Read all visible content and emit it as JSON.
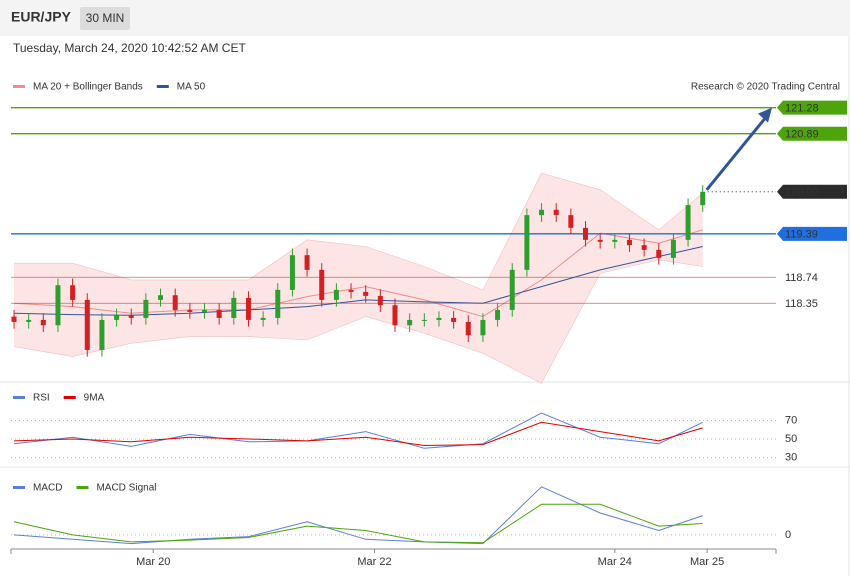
{
  "header": {
    "symbol": "EUR/JPY",
    "interval": "30 MIN",
    "timestamp": "Tuesday, March 24, 2020 10:42:52 AM CET"
  },
  "chart_data": [
    {
      "type": "candlestick",
      "legend": [
        {
          "name": "MA 20 + Bollinger Bands",
          "color": "#f08c8c"
        },
        {
          "name": "MA 50",
          "color": "#2f5597"
        }
      ],
      "credit": "Research © 2020 Trading Central",
      "open": [
        118.15,
        118.07,
        118.1,
        118.02,
        118.62,
        118.4,
        117.65,
        118.1,
        118.17,
        118.13,
        118.4,
        118.47,
        118.25,
        118.22,
        118.25,
        118.13,
        118.43,
        118.1,
        118.13,
        118.55,
        119.07,
        118.85,
        118.4,
        118.55,
        118.52,
        118.46,
        118.32,
        118.02,
        118.1,
        118.1,
        118.13,
        118.07,
        117.87,
        118.1,
        118.25,
        118.85,
        119.67,
        119.75,
        119.67,
        119.48,
        119.3,
        119.27,
        119.3,
        119.22,
        119.15,
        119.03,
        119.3,
        119.82
      ],
      "high": [
        118.25,
        118.2,
        118.2,
        118.72,
        118.72,
        118.5,
        118.2,
        118.27,
        118.27,
        118.5,
        118.57,
        118.57,
        118.35,
        118.35,
        118.35,
        118.53,
        118.53,
        118.23,
        118.65,
        119.17,
        119.17,
        118.95,
        118.65,
        118.65,
        118.62,
        118.56,
        118.42,
        118.2,
        118.2,
        118.23,
        118.23,
        118.17,
        118.2,
        118.35,
        118.95,
        119.77,
        119.85,
        119.85,
        119.77,
        119.58,
        119.4,
        119.4,
        119.4,
        119.32,
        119.25,
        119.4,
        119.92,
        120.12
      ],
      "low": [
        117.97,
        117.97,
        117.92,
        117.92,
        118.3,
        117.55,
        117.55,
        118.0,
        118.03,
        118.03,
        118.3,
        118.15,
        118.12,
        118.12,
        118.03,
        118.03,
        118.0,
        118.0,
        118.03,
        118.45,
        118.75,
        118.3,
        118.3,
        118.42,
        118.36,
        118.22,
        117.92,
        117.92,
        118.0,
        118.0,
        117.97,
        117.77,
        117.77,
        118.0,
        118.15,
        118.75,
        119.57,
        119.57,
        119.38,
        119.2,
        119.17,
        119.17,
        119.12,
        119.05,
        118.93,
        118.93,
        119.2,
        119.72
      ],
      "close": [
        118.07,
        118.1,
        118.02,
        118.62,
        118.4,
        117.65,
        118.1,
        118.17,
        118.13,
        118.4,
        118.47,
        118.25,
        118.22,
        118.25,
        118.13,
        118.43,
        118.1,
        118.13,
        118.55,
        119.07,
        118.85,
        118.4,
        118.55,
        118.52,
        118.46,
        118.32,
        118.02,
        118.1,
        118.1,
        118.13,
        118.07,
        117.87,
        118.1,
        118.25,
        118.85,
        119.67,
        119.75,
        119.67,
        119.48,
        119.3,
        119.27,
        119.3,
        119.22,
        119.15,
        119.03,
        119.3,
        119.82,
        120.02
      ],
      "up_color": "#2e9e2e",
      "down_color": "#d42020",
      "bollinger": {
        "color": "#f08c8c",
        "fill": "#fde0e0",
        "x": [
          0,
          4,
          8,
          12,
          16,
          20,
          24,
          28,
          32,
          36,
          40,
          44,
          47
        ],
        "upper": [
          118.95,
          118.95,
          118.7,
          118.7,
          118.7,
          119.3,
          119.2,
          118.9,
          118.55,
          120.3,
          120.05,
          119.45,
          120.0
        ],
        "middle": [
          118.35,
          118.3,
          118.2,
          118.25,
          118.25,
          118.45,
          118.6,
          118.4,
          118.15,
          118.7,
          119.4,
          119.25,
          119.45
        ],
        "lower": [
          117.7,
          117.55,
          117.75,
          117.85,
          117.85,
          117.8,
          118.15,
          117.9,
          117.6,
          117.15,
          118.8,
          119.0,
          118.9
        ]
      },
      "ma50": {
        "color": "#2f5597",
        "x": [
          0,
          4,
          8,
          12,
          16,
          20,
          24,
          28,
          32,
          36,
          40,
          44,
          47
        ],
        "values": [
          118.2,
          118.18,
          118.17,
          118.2,
          118.25,
          118.3,
          118.4,
          118.37,
          118.35,
          118.6,
          118.85,
          119.05,
          119.2
        ]
      },
      "levels": [
        {
          "value": 121.28,
          "color": "#4ea40c",
          "style": "filled",
          "line": "solid"
        },
        {
          "value": 120.89,
          "color": "#4ea40c",
          "style": "filled",
          "line": "solid"
        },
        {
          "value": 120.02,
          "color": "#2b2b2b",
          "style": "filled",
          "line": "dotted"
        },
        {
          "value": 119.39,
          "color": "#1f6fe0",
          "style": "filled",
          "line": "solid"
        },
        {
          "value": 118.74,
          "color": "#d42020",
          "style": "text",
          "line": "thin"
        },
        {
          "value": 118.35,
          "color": "#d42020",
          "style": "text",
          "line": "thin"
        }
      ],
      "target": 121.28,
      "xlim": [
        0,
        52
      ],
      "ylim": [
        117.2,
        121.5
      ]
    },
    {
      "type": "line",
      "series": [
        {
          "name": "RSI",
          "color": "#5b7fd8",
          "x": [
            0,
            4,
            8,
            12,
            16,
            20,
            24,
            28,
            32,
            36,
            40,
            44,
            47
          ],
          "values": [
            45,
            52,
            42,
            55,
            47,
            48,
            58,
            40,
            45,
            78,
            52,
            45,
            68
          ]
        },
        {
          "name": "9MA",
          "color": "#e00000",
          "x": [
            0,
            4,
            8,
            12,
            16,
            20,
            24,
            28,
            32,
            36,
            40,
            44,
            47
          ],
          "values": [
            48,
            50,
            47,
            52,
            50,
            48,
            52,
            43,
            44,
            68,
            58,
            48,
            62
          ]
        }
      ],
      "xlim": [
        0,
        52
      ],
      "ylim": [
        22,
        105
      ],
      "yticks": [
        30,
        50,
        70
      ]
    },
    {
      "type": "line",
      "series": [
        {
          "name": "MACD",
          "color": "#5b7fd8",
          "x": [
            0,
            4,
            8,
            12,
            16,
            20,
            24,
            28,
            32,
            36,
            40,
            44,
            47
          ],
          "values": [
            0.0,
            -0.05,
            -0.1,
            -0.05,
            -0.02,
            0.15,
            -0.05,
            -0.08,
            -0.1,
            0.55,
            0.25,
            0.05,
            0.22
          ]
        },
        {
          "name": "MACD Signal",
          "color": "#4ea40c",
          "x": [
            0,
            4,
            8,
            12,
            16,
            20,
            24,
            28,
            32,
            36,
            40,
            44,
            47
          ],
          "values": [
            0.15,
            0.0,
            -0.08,
            -0.06,
            -0.03,
            0.1,
            0.05,
            -0.08,
            -0.09,
            0.35,
            0.35,
            0.1,
            0.13
          ]
        }
      ],
      "xlim": [
        0,
        52
      ],
      "ylim": [
        -0.15,
        0.65
      ],
      "yticks": [
        0
      ],
      "xticks": [
        {
          "value": 9.5,
          "label": "Mar 20"
        },
        {
          "value": 24.6,
          "label": "Mar 22"
        },
        {
          "value": 41,
          "label": "Mar 24"
        },
        {
          "value": 47.3,
          "label": "Mar 25"
        }
      ]
    }
  ]
}
